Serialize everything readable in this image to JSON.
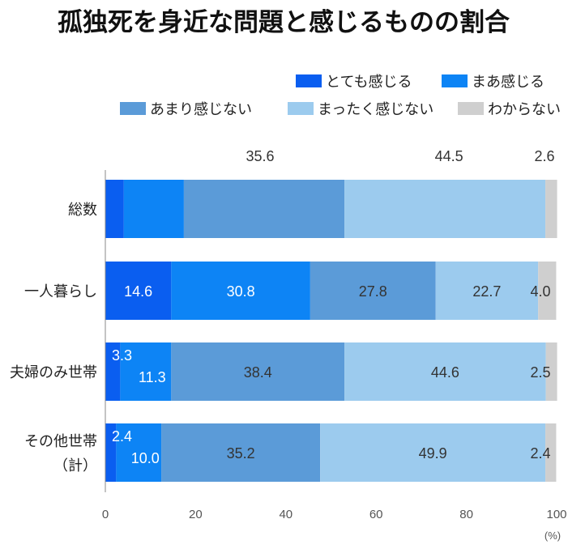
{
  "chart_data": {
    "type": "bar",
    "orientation": "horizontal",
    "stacked": true,
    "title": "孤独死を身近な問題と感じるものの割合",
    "unit": "(%)",
    "xlim": [
      0,
      100
    ],
    "xticks": [
      "0",
      "20",
      "40",
      "60",
      "80",
      "100"
    ],
    "legend_position": "top-right",
    "grid": false,
    "categories": [
      {
        "label_lines": [
          "総数"
        ]
      },
      {
        "label_lines": [
          "一人暮らし"
        ]
      },
      {
        "label_lines": [
          "夫婦のみ世帯"
        ]
      },
      {
        "label_lines": [
          "その他世帯",
          "（計）"
        ]
      }
    ],
    "series": [
      {
        "name": "とても感じる",
        "color": "#0a5ef0",
        "values": [
          4.1,
          14.6,
          3.3,
          2.4
        ],
        "labels": [
          "",
          "14.6",
          "3.3",
          "2.4"
        ],
        "label_color": "#ffffff"
      },
      {
        "name": "まあ感じる",
        "color": "#0d84f5",
        "values": [
          13.3,
          30.8,
          11.3,
          10.0
        ],
        "labels": [
          "",
          "30.8",
          "11.3",
          "10.0"
        ],
        "label_color": "#ffffff"
      },
      {
        "name": "あまり感じない",
        "color": "#5b9bd8",
        "values": [
          35.6,
          27.8,
          38.4,
          35.2
        ],
        "labels": [
          "35.6",
          "27.8",
          "38.4",
          "35.2"
        ],
        "label_color": "#333333"
      },
      {
        "name": "まったく感じない",
        "color": "#9ccbee",
        "values": [
          44.5,
          22.7,
          44.6,
          49.9
        ],
        "labels": [
          "44.5",
          "22.7",
          "44.6",
          "49.9"
        ],
        "label_color": "#333333"
      },
      {
        "name": "わからない",
        "color": "#cfcfcf",
        "values": [
          2.6,
          4.0,
          2.5,
          2.4
        ],
        "labels": [
          "2.6",
          "4.0",
          "2.5",
          "2.4"
        ],
        "label_color": "#333333"
      }
    ]
  }
}
